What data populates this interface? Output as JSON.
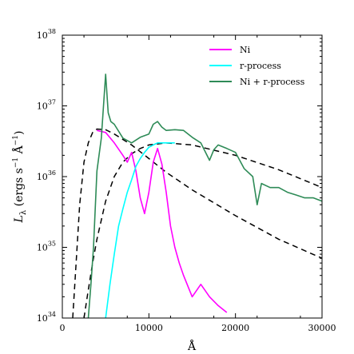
{
  "chart_data": {
    "type": "line",
    "xlabel": "Å",
    "ylabel": "L_λ (ergs s⁻¹ Å⁻¹)",
    "ylabel_parts": {
      "main": "L",
      "sub": "λ",
      "rest": " (ergs s",
      "exp1": "−1",
      "mid": " Å",
      "exp2": "−1",
      "end": ")"
    },
    "xlim": [
      0,
      30000
    ],
    "ylim": [
      1e+34,
      1e+38
    ],
    "yscale": "log",
    "xticks": [
      0,
      10000,
      20000,
      30000
    ],
    "xtick_labels": [
      "0",
      "10000",
      "20000",
      "30000"
    ],
    "yticks": [
      1e+34,
      1e+35,
      1e+36,
      1e+37,
      1e+38
    ],
    "ytick_labels": [
      {
        "base": "10",
        "exp": "34"
      },
      {
        "base": "10",
        "exp": "35"
      },
      {
        "base": "10",
        "exp": "36"
      },
      {
        "base": "10",
        "exp": "37"
      },
      {
        "base": "10",
        "exp": "38"
      }
    ],
    "legend_position": "top-right",
    "colors": {
      "ni": "#ff00ff",
      "rprocess": "#00ffff",
      "combined": "#2e8b57",
      "blackbody": "#000000"
    },
    "series": [
      {
        "name": "Ni",
        "color": "#ff00ff",
        "x": [
          4000,
          5000,
          6000,
          7000,
          7500,
          8000,
          8500,
          9000,
          9500,
          10000,
          10500,
          11000,
          11500,
          12000,
          12500,
          13000,
          13500,
          14000,
          15000,
          16000,
          17000,
          18000,
          19000
        ],
        "y": [
          4.5e+36,
          4.2e+36,
          3e+36,
          2e+36,
          1.6e+36,
          2.2e+36,
          1.2e+36,
          5e+35,
          3e+35,
          6e+35,
          1.6e+36,
          2.5e+36,
          1.5e+36,
          6e+35,
          2e+35,
          1e+35,
          6e+34,
          4e+34,
          2e+34,
          3e+34,
          2e+34,
          1.5e+34,
          1.2e+34
        ]
      },
      {
        "name": "r-process",
        "color": "#00ffff",
        "x": [
          5000,
          5500,
          6000,
          6500,
          7000,
          7500,
          8000,
          8500,
          9000,
          9500,
          10000,
          10500,
          11000,
          11500,
          12000,
          13000
        ],
        "y": [
          1e+34,
          3e+34,
          8e+34,
          2e+35,
          3.5e+35,
          6e+35,
          9e+35,
          1.4e+36,
          1.8e+36,
          2.2e+36,
          2.6e+36,
          2.8e+36,
          3e+36,
          3e+36,
          3e+36,
          3e+36
        ]
      },
      {
        "name": "Ni + r-process",
        "color": "#2e8b57",
        "x": [
          3000,
          3300,
          3600,
          4000,
          4500,
          5000,
          5300,
          5600,
          6000,
          7000,
          8000,
          9000,
          10000,
          10500,
          11000,
          11500,
          12000,
          13000,
          14000,
          15000,
          16000,
          17000,
          17500,
          18000,
          19000,
          20000,
          21000,
          22000,
          22500,
          23000,
          24000,
          25000,
          26000,
          27000,
          28000,
          29000,
          30000
        ],
        "y": [
          1e+34,
          3e+34,
          1e+35,
          1.2e+36,
          3.5e+36,
          2.8e+37,
          8e+36,
          6e+36,
          5.5e+36,
          3.5e+36,
          3e+36,
          3.6e+36,
          4e+36,
          5.5e+36,
          6e+36,
          5e+36,
          4.5e+36,
          4.6e+36,
          4.5e+36,
          3.6e+36,
          3e+36,
          1.7e+36,
          2.4e+36,
          2.8e+36,
          2.5e+36,
          2.2e+36,
          1.3e+36,
          1e+36,
          4e+35,
          8e+35,
          7e+35,
          7e+35,
          6e+35,
          5.5e+35,
          5e+35,
          5e+35,
          4.5e+35
        ]
      }
    ],
    "blackbody_curves": [
      {
        "x": [
          1200,
          1500,
          2000,
          2500,
          3000,
          3500,
          4000,
          5000,
          6000,
          8000,
          10000,
          12000,
          15000,
          20000,
          25000,
          30000
        ],
        "y": [
          1e+34,
          4e+34,
          4e+35,
          1.6e+36,
          3e+36,
          4.2e+36,
          4.7e+36,
          4.6e+36,
          4e+36,
          2.8e+36,
          1.8e+36,
          1.15e+36,
          6.5e+35,
          2.8e+35,
          1.3e+35,
          7e+34
        ]
      },
      {
        "x": [
          2500,
          3000,
          3500,
          4000,
          5000,
          6000,
          7000,
          8000,
          9000,
          10000,
          12000,
          15000,
          20000,
          25000,
          30000
        ],
        "y": [
          1e+34,
          2.5e+34,
          6e+34,
          1.3e+35,
          4.5e+35,
          1e+36,
          1.6e+36,
          2.1e+36,
          2.5e+36,
          2.8e+36,
          3e+36,
          2.8e+36,
          2e+36,
          1.25e+36,
          7e+35
        ]
      }
    ]
  }
}
